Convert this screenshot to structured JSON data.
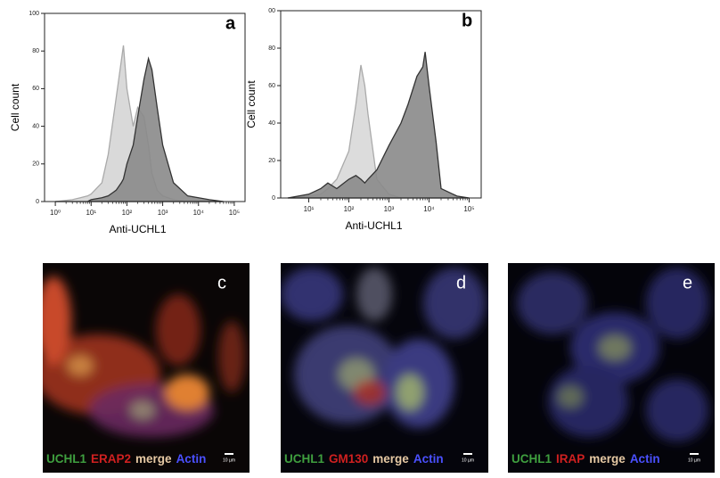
{
  "chart_data": [
    {
      "type": "area",
      "panel": "a",
      "ylabel": "Cell count",
      "xlabel": "Anti-UCHL1",
      "log_x": true,
      "xlim": [
        0.5,
        200000
      ],
      "ylim": [
        0,
        100
      ],
      "xticks": [
        {
          "value": 1,
          "label": "10⁰"
        },
        {
          "value": 10,
          "label": "10¹"
        },
        {
          "value": 100,
          "label": "10²"
        },
        {
          "value": 1000,
          "label": "10³"
        },
        {
          "value": 10000,
          "label": "10⁴"
        },
        {
          "value": 100000,
          "label": "10⁵"
        }
      ],
      "yticks": [
        0,
        20,
        40,
        60,
        80,
        100
      ],
      "x": [
        1,
        3,
        5,
        8,
        10,
        20,
        30,
        50,
        70,
        80,
        100,
        150,
        200,
        300,
        400,
        500,
        700,
        1000,
        2000,
        5000,
        10000,
        20000,
        50000
      ],
      "series": [
        {
          "color": "#d9d9d9",
          "values": [
            0,
            1,
            2,
            3,
            4,
            10,
            25,
            55,
            75,
            83,
            60,
            40,
            50,
            45,
            30,
            15,
            6,
            3,
            1,
            0,
            0,
            0,
            0
          ]
        },
        {
          "color": "#8a8a8a",
          "values": [
            0,
            0,
            0,
            0,
            1,
            2,
            3,
            6,
            10,
            12,
            20,
            30,
            45,
            65,
            76,
            70,
            50,
            30,
            10,
            3,
            2,
            1,
            0
          ]
        }
      ]
    },
    {
      "type": "area",
      "panel": "b",
      "ylabel": "Cell count",
      "xlabel": "Anti-UCHL1",
      "log_x": true,
      "xlim": [
        2,
        200000
      ],
      "ylim": [
        0,
        100
      ],
      "xticks": [
        {
          "value": 10,
          "label": "10¹"
        },
        {
          "value": 100,
          "label": "10²"
        },
        {
          "value": 1000,
          "label": "10³"
        },
        {
          "value": 10000,
          "label": "10⁴"
        },
        {
          "value": 100000,
          "label": "10⁵"
        }
      ],
      "yticks": [
        0,
        20,
        40,
        60,
        80,
        {
          "value": 100,
          "label": "00"
        }
      ],
      "x": [
        3,
        10,
        20,
        30,
        50,
        100,
        150,
        200,
        250,
        300,
        500,
        1000,
        2000,
        3000,
        5000,
        7000,
        8000,
        10000,
        15000,
        20000,
        50000,
        100000
      ],
      "series": [
        {
          "color": "#dcdcdc",
          "values": [
            0,
            1,
            2,
            5,
            10,
            25,
            50,
            71,
            60,
            45,
            10,
            2,
            0,
            0,
            0,
            0,
            0,
            0,
            0,
            0,
            0,
            0
          ]
        },
        {
          "color": "#8a8a8a",
          "values": [
            0,
            2,
            5,
            8,
            5,
            10,
            12,
            10,
            8,
            10,
            15,
            28,
            40,
            50,
            65,
            70,
            78,
            60,
            30,
            5,
            1,
            0
          ]
        }
      ]
    }
  ],
  "images": [
    {
      "panel": "c",
      "scale": "10 µm",
      "stains": [
        {
          "text": "UCHL1",
          "color": "#3f9f3f"
        },
        {
          "text": "ERAP2",
          "color": "#d02020"
        },
        {
          "text": "merge",
          "color": "#e6c9a4"
        },
        {
          "text": "Actin",
          "color": "#4a50ff"
        }
      ]
    },
    {
      "panel": "d",
      "scale": "10 µm",
      "stains": [
        {
          "text": "UCHL1",
          "color": "#3f9f3f"
        },
        {
          "text": "GM130",
          "color": "#d02020"
        },
        {
          "text": "merge",
          "color": "#e6c9a4"
        },
        {
          "text": "Actin",
          "color": "#4a50ff"
        }
      ]
    },
    {
      "panel": "e",
      "scale": "10 µm",
      "stains": [
        {
          "text": "UCHL1",
          "color": "#3f9f3f"
        },
        {
          "text": "IRAP",
          "color": "#d02020"
        },
        {
          "text": "merge",
          "color": "#e6c9a4"
        },
        {
          "text": "Actin",
          "color": "#4a50ff"
        }
      ]
    }
  ]
}
